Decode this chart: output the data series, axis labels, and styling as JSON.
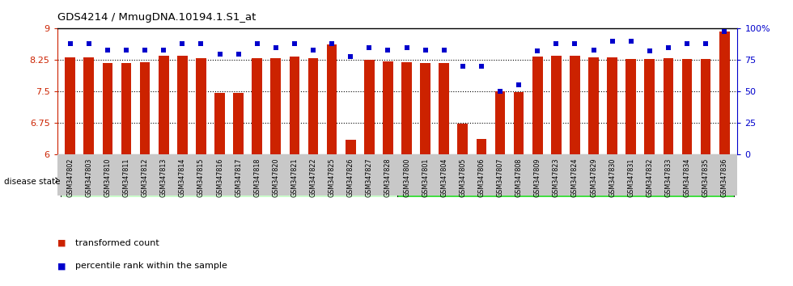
{
  "title": "GDS4214 / MmugDNA.10194.1.S1_at",
  "samples": [
    "GSM347802",
    "GSM347803",
    "GSM347810",
    "GSM347811",
    "GSM347812",
    "GSM347813",
    "GSM347814",
    "GSM347815",
    "GSM347816",
    "GSM347817",
    "GSM347818",
    "GSM347820",
    "GSM347821",
    "GSM347822",
    "GSM347825",
    "GSM347826",
    "GSM347827",
    "GSM347828",
    "GSM347800",
    "GSM347801",
    "GSM347804",
    "GSM347805",
    "GSM347806",
    "GSM347807",
    "GSM347808",
    "GSM347809",
    "GSM347823",
    "GSM347824",
    "GSM347829",
    "GSM347830",
    "GSM347831",
    "GSM347832",
    "GSM347833",
    "GSM347834",
    "GSM347835",
    "GSM347836"
  ],
  "bar_values": [
    8.31,
    8.31,
    8.18,
    8.17,
    8.19,
    8.35,
    8.35,
    8.29,
    7.46,
    7.46,
    8.29,
    8.3,
    8.33,
    8.3,
    8.63,
    6.35,
    8.25,
    8.21,
    8.2,
    8.18,
    8.18,
    6.74,
    6.36,
    7.5,
    7.48,
    8.33,
    8.35,
    8.35,
    8.31,
    8.32,
    8.28,
    8.28,
    8.3,
    8.28,
    8.28,
    8.94
  ],
  "percentile_values": [
    88,
    88,
    83,
    83,
    83,
    83,
    88,
    88,
    80,
    80,
    88,
    85,
    88,
    83,
    88,
    78,
    85,
    83,
    85,
    83,
    83,
    70,
    70,
    50,
    55,
    82,
    88,
    88,
    83,
    90,
    90,
    82,
    85,
    88,
    88,
    98
  ],
  "healthy_control_count": 18,
  "siv_count": 18,
  "ylim_left": [
    6,
    9
  ],
  "ylim_right": [
    0,
    100
  ],
  "yticks_left": [
    6,
    6.75,
    7.5,
    8.25,
    9
  ],
  "yticks_right": [
    0,
    25,
    50,
    75,
    100
  ],
  "bar_color": "#cc2200",
  "dot_color": "#0000cc",
  "healthy_color": "#ccffcc",
  "siv_color": "#44dd44",
  "ticklabel_bg": "#c8c8c8",
  "bar_width": 0.55
}
